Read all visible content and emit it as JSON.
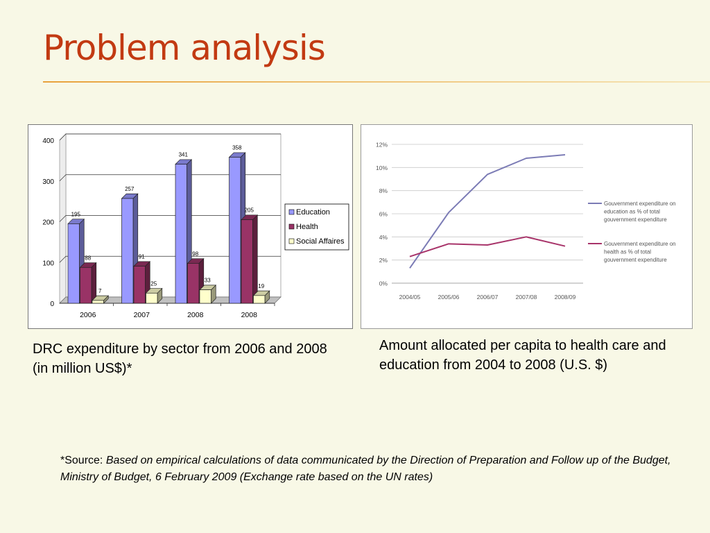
{
  "slide": {
    "title": "Problem analysis",
    "caption_left": "DRC expenditure by sector from 2006 and 2008 (in million US$)*",
    "caption_right": "Amount allocated per capita to health care and education from 2004 to 2008 (U.S. $)",
    "source_prefix": "*Source: ",
    "source_text": "Based on empirical calculations of data communicated by the Direction of Preparation and Follow up of the Budget, Ministry of Budget, 6 February 2009 (Exchange rate based on the UN rates)"
  },
  "colors": {
    "title": "#c23a12",
    "education": "#9999ff",
    "health": "#993366",
    "social": "#ffffcc",
    "line_education": "#7b7bb5",
    "line_health": "#a8346a"
  },
  "chart_data": [
    {
      "type": "bar",
      "categories": [
        "2006",
        "2007",
        "2008",
        "2008"
      ],
      "series": [
        {
          "name": "Education",
          "values": [
            195,
            257,
            341,
            358
          ]
        },
        {
          "name": "Health",
          "values": [
            88,
            91,
            98,
            205
          ]
        },
        {
          "name": "Social Affaires",
          "values": [
            7,
            25,
            33,
            19
          ]
        }
      ],
      "ylim": [
        0,
        400
      ],
      "yticks": [
        "0",
        "100",
        "200",
        "300",
        "400"
      ],
      "grid": true,
      "legend": "right",
      "style": "3d"
    },
    {
      "type": "line",
      "categories": [
        "2004/05",
        "2005/06",
        "2006/07",
        "2007/08",
        "2008/09"
      ],
      "series": [
        {
          "name": "Gouvernment expenditure on education as % of total gouvernment expenditure",
          "values": [
            1.3,
            6.1,
            9.4,
            10.8,
            11.1
          ]
        },
        {
          "name": "Gouvernment expenditure on health as % of total gouvernment expenditure",
          "values": [
            2.3,
            3.4,
            3.3,
            4.0,
            3.2
          ]
        }
      ],
      "ylim": [
        0,
        12
      ],
      "yticks": [
        "0%",
        "2%",
        "4%",
        "6%",
        "8%",
        "10%",
        "12%"
      ],
      "grid": true,
      "legend": "right"
    }
  ]
}
